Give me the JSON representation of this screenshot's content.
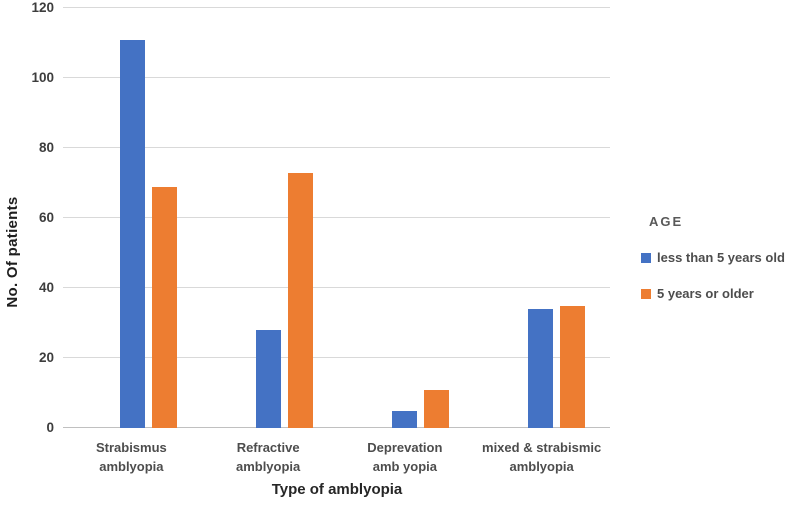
{
  "chart_data": {
    "type": "bar",
    "title": "",
    "xlabel": "Type of amblyopia",
    "ylabel": "No. Of patients",
    "ylim": [
      0,
      120
    ],
    "yticks": [
      0,
      20,
      40,
      60,
      80,
      100,
      120
    ],
    "grid": true,
    "legend": {
      "title": "AGE",
      "position": "right"
    },
    "categories": [
      {
        "line1": "Strabismus",
        "line2": "amblyopia"
      },
      {
        "line1": "Refractive",
        "line2": "amblyopia"
      },
      {
        "line1": "Deprevation",
        "line2": "amb yopia"
      },
      {
        "line1": "mixed & strabismic",
        "line2": "amblyopia"
      }
    ],
    "series": [
      {
        "name": "less than 5 years old",
        "color": "#4472C4",
        "values": [
          111,
          28,
          5,
          34
        ]
      },
      {
        "name": "5 years or older",
        "color": "#ED7D31",
        "values": [
          69,
          73,
          11,
          35
        ]
      }
    ]
  }
}
